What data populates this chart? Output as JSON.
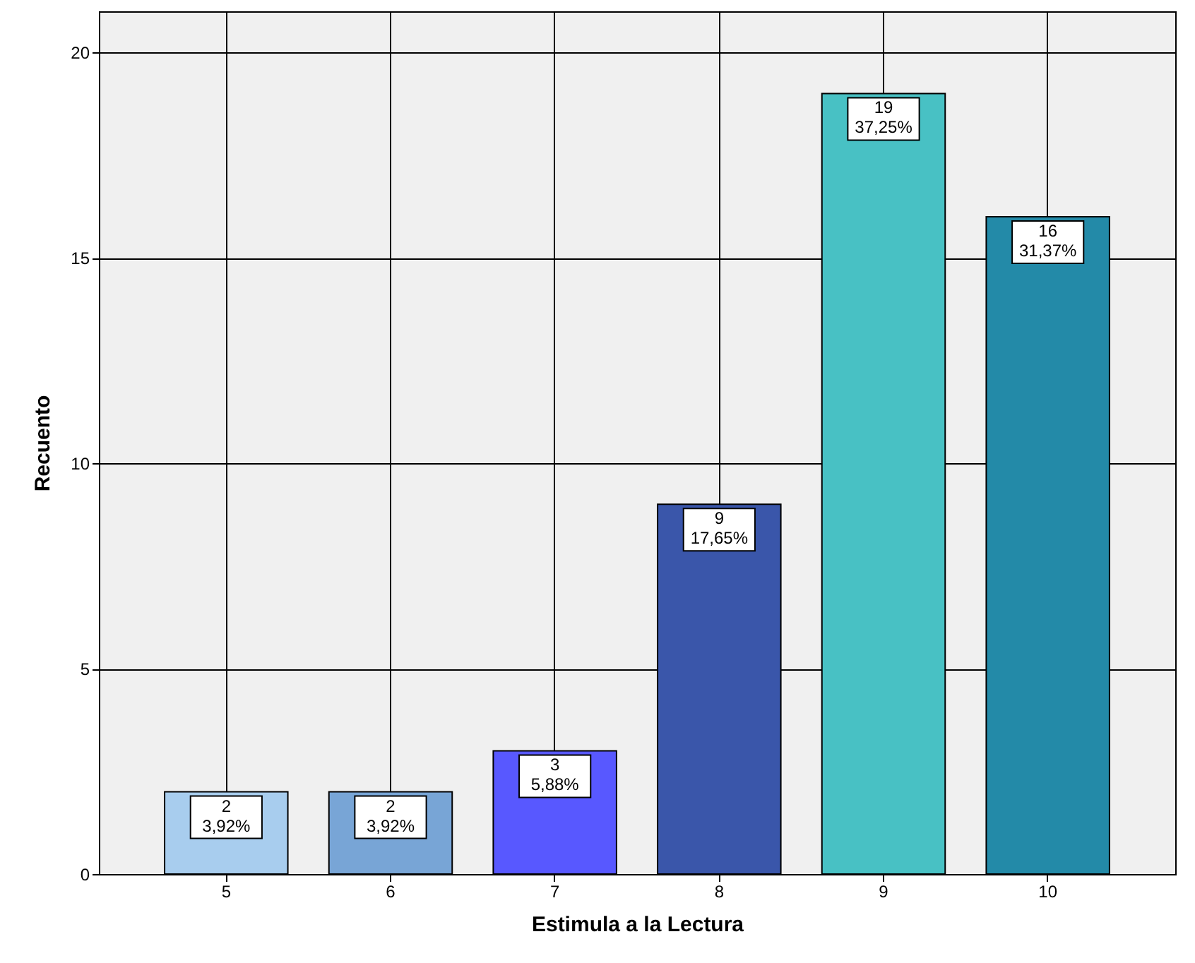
{
  "chart_data": {
    "type": "bar",
    "xlabel": "Estimula a la Lectura",
    "ylabel": "Recuento",
    "categories": [
      "5",
      "6",
      "7",
      "8",
      "9",
      "10"
    ],
    "values": [
      2,
      2,
      3,
      9,
      19,
      16
    ],
    "colors": [
      "#a8cdee",
      "#78a5d6",
      "#5858ff",
      "#3a56aa",
      "#48c1c4",
      "#238aa8"
    ],
    "value_labels": [
      "2\n3,92%",
      "2\n3,92%",
      "3\n5,88%",
      "9\n17,65%",
      "19\n37,25%",
      "16\n31,37%"
    ],
    "ylim": [
      0,
      21
    ],
    "yticks": [
      0,
      5,
      10,
      15,
      20
    ],
    "grid": true
  }
}
